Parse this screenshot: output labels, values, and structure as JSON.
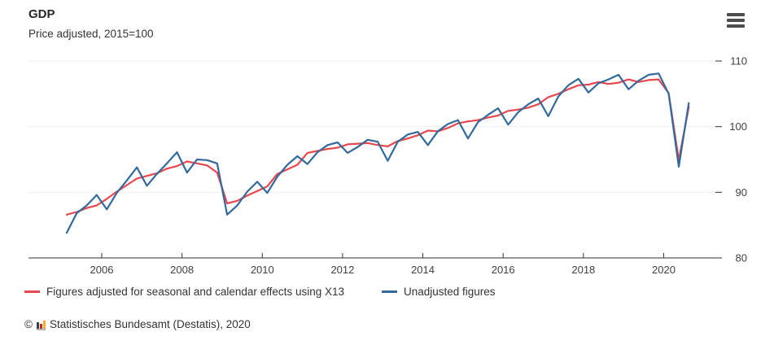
{
  "header": {
    "title": "GDP",
    "subtitle": "Price adjusted, 2015=100"
  },
  "menu": {
    "icon": "hamburger-icon"
  },
  "chart_data": {
    "type": "line",
    "title": "GDP",
    "subtitle": "Price adjusted, 2015=100",
    "y_axis_side": "right",
    "y_ticks": [
      80,
      90,
      100,
      110
    ],
    "y_range": [
      80,
      110
    ],
    "x_label_ticks": [
      2006,
      2008,
      2010,
      2012,
      2014,
      2016,
      2018,
      2020
    ],
    "x_range": [
      2004.175,
      2021.41
    ],
    "x_start": 2005.125,
    "x_step": 0.25,
    "grid": "horizontal-faint",
    "legend_position": "bottom",
    "quarters": [
      "2005 Q1",
      "2005 Q2",
      "2005 Q3",
      "2005 Q4",
      "2006 Q1",
      "2006 Q2",
      "2006 Q3",
      "2006 Q4",
      "2007 Q1",
      "2007 Q2",
      "2007 Q3",
      "2007 Q4",
      "2008 Q1",
      "2008 Q2",
      "2008 Q3",
      "2008 Q4",
      "2009 Q1",
      "2009 Q2",
      "2009 Q3",
      "2009 Q4",
      "2010 Q1",
      "2010 Q2",
      "2010 Q3",
      "2010 Q4",
      "2011 Q1",
      "2011 Q2",
      "2011 Q3",
      "2011 Q4",
      "2012 Q1",
      "2012 Q2",
      "2012 Q3",
      "2012 Q4",
      "2013 Q1",
      "2013 Q2",
      "2013 Q3",
      "2013 Q4",
      "2014 Q1",
      "2014 Q2",
      "2014 Q3",
      "2014 Q4",
      "2015 Q1",
      "2015 Q2",
      "2015 Q3",
      "2015 Q4",
      "2016 Q1",
      "2016 Q2",
      "2016 Q3",
      "2016 Q4",
      "2017 Q1",
      "2017 Q2",
      "2017 Q3",
      "2017 Q4",
      "2018 Q1",
      "2018 Q2",
      "2018 Q3",
      "2018 Q4",
      "2019 Q1",
      "2019 Q2",
      "2019 Q3",
      "2019 Q4",
      "2020 Q1",
      "2020 Q2",
      "2020 Q3"
    ],
    "series": [
      {
        "name": "Figures adjusted for seasonal and calendar effects using X13",
        "color": "#e5484f",
        "values": [
          86.6,
          87.0,
          87.6,
          88.0,
          89.0,
          90.1,
          91.1,
          92.1,
          92.5,
          92.9,
          93.6,
          94.0,
          94.7,
          94.4,
          94.1,
          93.0,
          88.3,
          88.7,
          89.5,
          90.2,
          90.9,
          92.8,
          93.5,
          94.2,
          96.0,
          96.3,
          96.6,
          96.8,
          97.3,
          97.4,
          97.5,
          97.2,
          97.0,
          97.8,
          98.2,
          98.7,
          99.4,
          99.3,
          99.8,
          100.5,
          100.8,
          101.0,
          101.4,
          101.7,
          102.4,
          102.6,
          102.9,
          103.4,
          104.5,
          105.0,
          105.7,
          106.3,
          106.4,
          106.8,
          106.5,
          106.7,
          107.2,
          106.8,
          107.1,
          107.2,
          105.1,
          94.9,
          103.0
        ]
      },
      {
        "name": "Unadjusted figures",
        "color": "#336a9b",
        "values": [
          83.8,
          86.8,
          88.0,
          89.6,
          87.4,
          89.9,
          91.8,
          93.8,
          91.0,
          92.8,
          94.4,
          96.1,
          93.0,
          95.0,
          94.9,
          94.4,
          86.6,
          88.0,
          90.1,
          91.6,
          89.9,
          92.4,
          94.2,
          95.5,
          94.3,
          96.1,
          97.2,
          97.6,
          96.0,
          96.9,
          98.0,
          97.7,
          94.8,
          97.7,
          98.8,
          99.2,
          97.2,
          99.3,
          100.4,
          101.0,
          98.2,
          100.7,
          101.8,
          102.8,
          100.3,
          102.2,
          103.4,
          104.3,
          101.6,
          104.6,
          106.3,
          107.3,
          105.2,
          106.6,
          107.2,
          107.9,
          105.7,
          107.0,
          107.9,
          108.1,
          105.0,
          93.9,
          103.6
        ]
      }
    ]
  },
  "footer": {
    "copyright": "©",
    "logo": "destatis-bar-chart-logo",
    "source": "Statistisches Bundesamt (Destatis), 2020"
  }
}
